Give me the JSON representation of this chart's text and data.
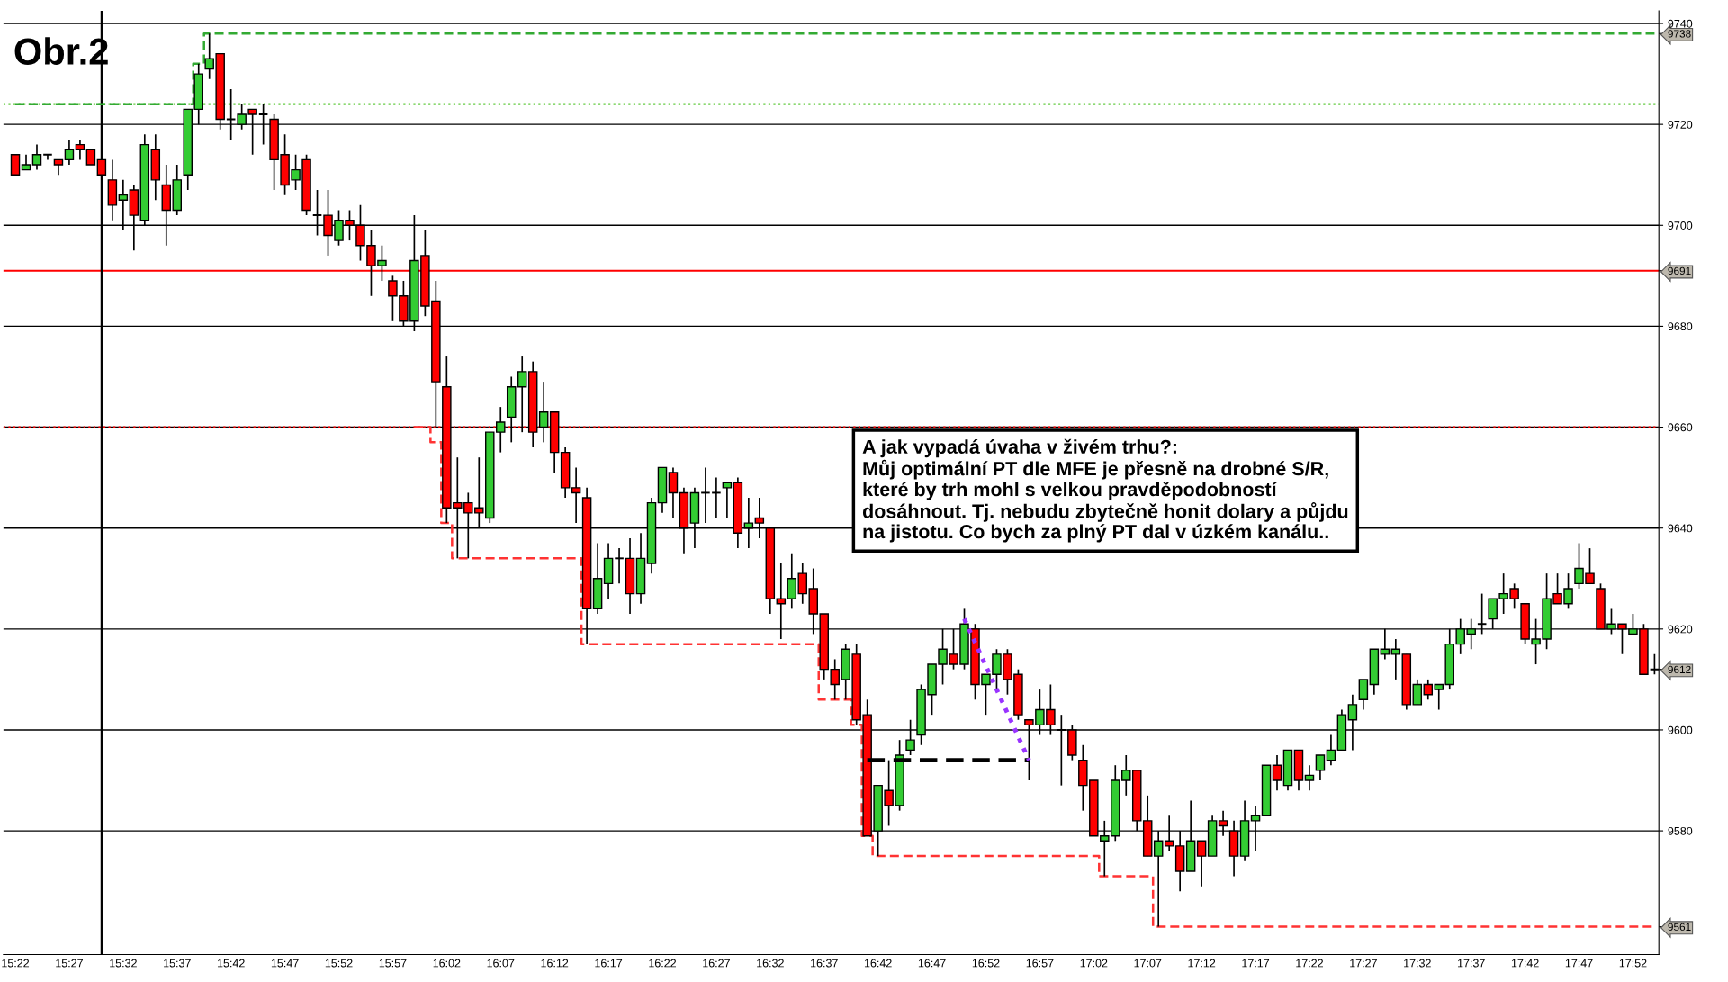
{
  "chart_data": {
    "type": "candlestick",
    "title": "Obr.2",
    "categories": [
      "15:22",
      null,
      null,
      null,
      null,
      "15:27",
      null,
      null,
      null,
      null,
      "15:32",
      null,
      null,
      null,
      null,
      "15:37",
      null,
      null,
      null,
      null,
      "15:42",
      null,
      null,
      null,
      null,
      "15:47",
      null,
      null,
      null,
      null,
      "15:52",
      null,
      null,
      null,
      null,
      "15:57",
      null,
      null,
      null,
      null,
      "16:02",
      null,
      null,
      null,
      null,
      "16:07",
      null,
      null,
      null,
      null,
      "16:12",
      null,
      null,
      null,
      null,
      "16:17",
      null,
      null,
      null,
      null,
      "16:22",
      null,
      null,
      null,
      null,
      "16:27",
      null,
      null,
      null,
      null,
      "16:32",
      null,
      null,
      null,
      null,
      "16:37",
      null,
      null,
      null,
      null,
      "16:42",
      null,
      null,
      null,
      null,
      "16:47",
      null,
      null,
      null,
      null,
      "16:52",
      null,
      null,
      null,
      null,
      "16:57",
      null,
      null,
      null,
      null,
      "17:02",
      null,
      null,
      null,
      null,
      "17:07",
      null,
      null,
      null,
      null,
      "17:12",
      null,
      null,
      null,
      null,
      "17:17",
      null,
      null,
      null,
      null,
      "17:22",
      null,
      null,
      null,
      null,
      "17:27",
      null,
      null,
      null,
      null,
      "17:32",
      null,
      null,
      null,
      null,
      "17:37",
      null,
      null,
      null,
      null,
      "17:42",
      null,
      null,
      null,
      null,
      "17:47",
      null,
      null,
      null,
      null,
      "17:52",
      null,
      null
    ],
    "colors": [
      "#ff0000",
      "#33cc33",
      "#33cc33",
      "#000000",
      "#ff0000",
      "#33cc33",
      "#ff0000",
      "#ff0000",
      "#ff0000",
      "#ff0000",
      "#33cc33",
      "#ff0000",
      "#33cc33",
      "#ff0000",
      "#ff0000",
      "#33cc33",
      "#33cc33",
      "#33cc33",
      "#33cc33",
      "#ff0000",
      "#000000",
      "#33cc33",
      "#ff0000",
      "#000000",
      "#ff0000",
      "#ff0000",
      "#33cc33",
      "#ff0000",
      "#000000",
      "#ff0000",
      "#33cc33",
      "#ff0000",
      "#ff0000",
      "#ff0000",
      "#33cc33",
      "#ff0000",
      "#ff0000",
      "#33cc33",
      "#ff0000",
      "#ff0000",
      "#ff0000",
      "#ff0000",
      "#ff0000",
      "#ff0000",
      "#33cc33",
      "#33cc33",
      "#33cc33",
      "#33cc33",
      "#ff0000",
      "#33cc33",
      "#ff0000",
      "#ff0000",
      "#ff0000",
      "#ff0000",
      "#33cc33",
      "#33cc33",
      "#000000",
      "#ff0000",
      "#33cc33",
      "#33cc33",
      "#33cc33",
      "#ff0000",
      "#ff0000",
      "#33cc33",
      "#000000",
      "#000000",
      "#33cc33",
      "#ff0000",
      "#33cc33",
      "#ff0000",
      "#ff0000",
      "#ff0000",
      "#33cc33",
      "#ff0000",
      "#ff0000",
      "#ff0000",
      "#ff0000",
      "#33cc33",
      "#ff0000",
      "#ff0000",
      "#33cc33",
      "#ff0000",
      "#33cc33",
      "#33cc33",
      "#33cc33",
      "#33cc33",
      "#33cc33",
      "#ff0000",
      "#33cc33",
      "#ff0000",
      "#33cc33",
      "#33cc33",
      "#ff0000",
      "#ff0000",
      "#ff0000",
      "#33cc33",
      "#ff0000",
      "#000000",
      "#ff0000",
      "#ff0000",
      "#ff0000",
      "#33cc33",
      "#33cc33",
      "#33cc33",
      "#ff0000",
      "#ff0000",
      "#33cc33",
      "#ff0000",
      "#ff0000",
      "#33cc33",
      "#ff0000",
      "#33cc33",
      "#ff0000",
      "#ff0000",
      "#33cc33",
      "#33cc33",
      "#33cc33",
      "#ff0000",
      "#33cc33",
      "#ff0000",
      "#33cc33",
      "#33cc33",
      "#33cc33",
      "#33cc33",
      "#33cc33",
      "#33cc33",
      "#33cc33",
      "#33cc33",
      "#33cc33",
      "#ff0000",
      "#33cc33",
      "#ff0000",
      "#33cc33",
      "#33cc33",
      "#33cc33",
      "#33cc33",
      "#000000",
      "#33cc33",
      "#33cc33",
      "#ff0000",
      "#ff0000",
      "#33cc33",
      "#33cc33",
      "#ff0000",
      "#33cc33",
      "#33cc33",
      "#ff0000",
      "#ff0000",
      "#33cc33",
      "#ff0000",
      "#33cc33",
      "#ff0000",
      "#000000"
    ],
    "ohlc": [
      [
        9714,
        9714,
        9710,
        9710
      ],
      [
        9711,
        9714,
        9711,
        9712
      ],
      [
        9712,
        9716,
        9711,
        9714
      ],
      [
        9714,
        9714,
        9713,
        9714
      ],
      [
        9713,
        9713,
        9710,
        9712
      ],
      [
        9713,
        9717,
        9712,
        9715
      ],
      [
        9716,
        9717,
        9713,
        9715
      ],
      [
        9715,
        9715,
        9712,
        9712
      ],
      [
        9713,
        9713,
        9710,
        9710
      ],
      [
        9709,
        9713,
        9701,
        9704
      ],
      [
        9705,
        9709,
        9699,
        9706
      ],
      [
        9707,
        9708,
        9695,
        9702
      ],
      [
        9701,
        9718,
        9700,
        9716
      ],
      [
        9715,
        9718,
        9705,
        9709
      ],
      [
        9708,
        9712,
        9696,
        9703
      ],
      [
        9703,
        9712,
        9702,
        9709
      ],
      [
        9710,
        9723,
        9707,
        9723
      ],
      [
        9723,
        9732,
        9720,
        9730
      ],
      [
        9731,
        9738,
        9729,
        9733
      ],
      [
        9734,
        9734,
        9719,
        9721
      ],
      [
        9721,
        9727,
        9717,
        9721
      ],
      [
        9720,
        9724,
        9719,
        9722
      ],
      [
        9723,
        9723,
        9714,
        9722
      ],
      [
        9722,
        9724,
        9716,
        9722
      ],
      [
        9721,
        9722,
        9707,
        9713
      ],
      [
        9714,
        9718,
        9706,
        9708
      ],
      [
        9709,
        9714,
        9707,
        9711
      ],
      [
        9713,
        9714,
        9702,
        9703
      ],
      [
        9702,
        9707,
        9698,
        9702
      ],
      [
        9702,
        9707,
        9694,
        9698
      ],
      [
        9697,
        9703,
        9696,
        9701
      ],
      [
        9701,
        9703,
        9697,
        9700
      ],
      [
        9700,
        9704,
        9693,
        9696
      ],
      [
        9696,
        9699,
        9686,
        9692
      ],
      [
        9692,
        9696,
        9689,
        9693
      ],
      [
        9689,
        9690,
        9681,
        9686
      ],
      [
        9686,
        9689,
        9680,
        9681
      ],
      [
        9681,
        9702,
        9679,
        9693
      ],
      [
        9694,
        9699,
        9682,
        9684
      ],
      [
        9685,
        9689,
        9660,
        9669
      ],
      [
        9668,
        9674,
        9641,
        9644
      ],
      [
        9645,
        9654,
        9634,
        9644
      ],
      [
        9645,
        9647,
        9634,
        9643
      ],
      [
        9644,
        9654,
        9640,
        9643
      ],
      [
        9642,
        9659,
        9641,
        9659
      ],
      [
        9659,
        9664,
        9655,
        9661
      ],
      [
        9662,
        9670,
        9657,
        9668
      ],
      [
        9668,
        9674,
        9659,
        9671
      ],
      [
        9671,
        9673,
        9656,
        9659
      ],
      [
        9660,
        9669,
        9657,
        9663
      ],
      [
        9663,
        9663,
        9651,
        9655
      ],
      [
        9655,
        9656,
        9646,
        9648
      ],
      [
        9648,
        9652,
        9641,
        9647
      ],
      [
        9646,
        9648,
        9617,
        9624
      ],
      [
        9624,
        9637,
        9623,
        9630
      ],
      [
        9629,
        9637,
        9626,
        9634
      ],
      [
        9634,
        9636,
        9629,
        9634
      ],
      [
        9634,
        9638,
        9623,
        9627
      ],
      [
        9627,
        9639,
        9625,
        9634
      ],
      [
        9633,
        9646,
        9631,
        9645
      ],
      [
        9645,
        9652,
        9643,
        9652
      ],
      [
        9651,
        9652,
        9642,
        9647
      ],
      [
        9647,
        9648,
        9635,
        9640
      ],
      [
        9641,
        9648,
        9636,
        9647
      ],
      [
        9647,
        9652,
        9641,
        9647
      ],
      [
        9647,
        9650,
        9642,
        9647
      ],
      [
        9648,
        9649,
        9642,
        9649
      ],
      [
        9649,
        9650,
        9636,
        9639
      ],
      [
        9640,
        9646,
        9636,
        9641
      ],
      [
        9642,
        9646,
        9638,
        9641
      ],
      [
        9640,
        9640,
        9623,
        9626
      ],
      [
        9626,
        9633,
        9618,
        9625
      ],
      [
        9626,
        9635,
        9624,
        9630
      ],
      [
        9631,
        9633,
        9625,
        9627
      ],
      [
        9628,
        9632,
        9619,
        9623
      ],
      [
        9623,
        9623,
        9610,
        9612
      ],
      [
        9612,
        9614,
        9606,
        9609
      ],
      [
        9610,
        9617,
        9606,
        9616
      ],
      [
        9615,
        9617,
        9601,
        9602
      ],
      [
        9603,
        9606,
        9579,
        9579
      ],
      [
        9580,
        9589,
        9575,
        9589
      ],
      [
        9588,
        9594,
        9581,
        9585
      ],
      [
        9585,
        9598,
        9584,
        9595
      ],
      [
        9596,
        9602,
        9595,
        9598
      ],
      [
        9599,
        9609,
        9597,
        9608
      ],
      [
        9607,
        9613,
        9603,
        9613
      ],
      [
        9613,
        9620,
        9609,
        9616
      ],
      [
        9615,
        9620,
        9612,
        9613
      ],
      [
        9613,
        9624,
        9612,
        9621
      ],
      [
        9620,
        9621,
        9606,
        9609
      ],
      [
        9609,
        9611,
        9603,
        9611
      ],
      [
        9611,
        9616,
        9608,
        9615
      ],
      [
        9615,
        9616,
        9607,
        9610
      ],
      [
        9611,
        9612,
        9602,
        9603
      ],
      [
        9602,
        9602,
        9590,
        9601
      ],
      [
        9601,
        9608,
        9599,
        9604
      ],
      [
        9604,
        9609,
        9599,
        9601
      ],
      [
        9600,
        9603,
        9589,
        9600
      ],
      [
        9600,
        9601,
        9594,
        9595
      ],
      [
        9594,
        9597,
        9584,
        9589
      ],
      [
        9590,
        9590,
        9579,
        9579
      ],
      [
        9578,
        9582,
        9571,
        9579
      ],
      [
        9579,
        9593,
        9578,
        9590
      ],
      [
        9590,
        9595,
        9587,
        9592
      ],
      [
        9592,
        9592,
        9580,
        9582
      ],
      [
        9582,
        9587,
        9575,
        9575
      ],
      [
        9575,
        9580,
        9561,
        9578
      ],
      [
        9578,
        9583,
        9576,
        9577
      ],
      [
        9577,
        9580,
        9568,
        9572
      ],
      [
        9572,
        9586,
        9572,
        9578
      ],
      [
        9578,
        9578,
        9569,
        9575
      ],
      [
        9575,
        9583,
        9575,
        9582
      ],
      [
        9582,
        9584,
        9579,
        9581
      ],
      [
        9580,
        9582,
        9571,
        9575
      ],
      [
        9575,
        9586,
        9574,
        9582
      ],
      [
        9582,
        9585,
        9576,
        9583
      ],
      [
        9583,
        9593,
        9583,
        9593
      ],
      [
        9593,
        9595,
        9588,
        9590
      ],
      [
        9589,
        9596,
        9588,
        9596
      ],
      [
        9596,
        9596,
        9588,
        9590
      ],
      [
        9590,
        9593,
        9588,
        9591
      ],
      [
        9592,
        9595,
        9590,
        9595
      ],
      [
        9594,
        9599,
        9593,
        9596
      ],
      [
        9596,
        9604,
        9596,
        9603
      ],
      [
        9602,
        9607,
        9596,
        9605
      ],
      [
        9606,
        9610,
        9604,
        9610
      ],
      [
        9609,
        9616,
        9607,
        9616
      ],
      [
        9615,
        9620,
        9614,
        9616
      ],
      [
        9615,
        9618,
        9610,
        9616
      ],
      [
        9615,
        9615,
        9604,
        9605
      ],
      [
        9605,
        9610,
        9605,
        9609
      ],
      [
        9609,
        9610,
        9606,
        9607
      ],
      [
        9608,
        9609,
        9604,
        9609
      ],
      [
        9609,
        9620,
        9608,
        9617
      ],
      [
        9617,
        9622,
        9615,
        9620
      ],
      [
        9619,
        9622,
        9616,
        9620
      ],
      [
        9621,
        9627,
        9619,
        9621
      ],
      [
        9622,
        9626,
        9620,
        9626
      ],
      [
        9626,
        9631,
        9623,
        9627
      ],
      [
        9628,
        9629,
        9624,
        9626
      ],
      [
        9625,
        9625,
        9617,
        9618
      ],
      [
        9617,
        9622,
        9613,
        9618
      ],
      [
        9618,
        9631,
        9616,
        9626
      ],
      [
        9627,
        9631,
        9625,
        9625
      ],
      [
        9625,
        9631,
        9624,
        9628
      ],
      [
        9629,
        9637,
        9628,
        9632
      ],
      [
        9631,
        9636,
        9629,
        9629
      ],
      [
        9628,
        9629,
        9620,
        9620
      ],
      [
        9620,
        9624,
        9619,
        9621
      ],
      [
        9621,
        9621,
        9615,
        9620
      ],
      [
        9619,
        9623,
        9619,
        9620
      ],
      [
        9620,
        9621,
        9611,
        9611
      ],
      [
        9612,
        9615,
        9611,
        9612
      ]
    ],
    "series": [
      {
        "type": "step",
        "color": "#ff3333",
        "line_style": "dashed",
        "values": [
          null,
          null,
          null,
          null,
          null,
          null,
          null,
          null,
          null,
          null,
          null,
          null,
          null,
          null,
          null,
          null,
          null,
          null,
          null,
          null,
          null,
          null,
          null,
          null,
          null,
          null,
          null,
          null,
          null,
          null,
          null,
          null,
          null,
          null,
          null,
          null,
          null,
          9660,
          9660,
          9657,
          9641,
          9634,
          9634,
          9634,
          9634,
          9634,
          9634,
          9634,
          9634,
          9634,
          9634,
          9634,
          9634,
          9617,
          9617,
          9617,
          9617,
          9617,
          9617,
          9617,
          9617,
          9617,
          9617,
          9617,
          9617,
          9617,
          9617,
          9617,
          9617,
          9617,
          9617,
          9617,
          9617,
          9617,
          9617,
          9606,
          9606,
          9606,
          9601,
          9579,
          9575,
          9575,
          9575,
          9575,
          9575,
          9575,
          9575,
          9575,
          9575,
          9575,
          9575,
          9575,
          9575,
          9575,
          9575,
          9575,
          9575,
          9575,
          9575,
          9575,
          9575,
          9571,
          9571,
          9571,
          9571,
          9571,
          9561,
          9561,
          9561,
          9561,
          9561,
          9561,
          9561,
          9561,
          9561,
          9561,
          9561,
          9561,
          9561,
          9561,
          9561,
          9561,
          9561,
          9561,
          9561,
          9561,
          9561,
          9561,
          9561,
          9561,
          9561,
          9561,
          9561,
          9561,
          9561,
          9561,
          9561,
          9561,
          9561,
          9561,
          9561,
          9561,
          9561,
          9561,
          9561,
          9561,
          9561,
          9561,
          9561,
          9561,
          9561,
          9561,
          9561
        ]
      },
      {
        "type": "step",
        "color": "#33aa33",
        "line_style": "dashed",
        "values": [
          9724,
          9724,
          9724,
          9724,
          9724,
          9724,
          9724,
          9724,
          9724,
          9724,
          9724,
          9724,
          9724,
          9724,
          9724,
          9724,
          9724,
          9732,
          9738,
          9738,
          9738,
          9738,
          9738,
          9738,
          9738,
          9738,
          9738,
          9738,
          9738,
          9738,
          9738,
          9738,
          9738,
          9738,
          9738,
          9738,
          9738,
          9738,
          9738,
          9738,
          9738,
          9738,
          9738,
          9738,
          9738,
          9738,
          9738,
          9738,
          9738,
          9738,
          9738,
          9738,
          9738,
          9738,
          9738,
          9738,
          9738,
          9738,
          9738,
          9738,
          9738,
          9738,
          9738,
          9738,
          9738,
          9738,
          9738,
          9738,
          9738,
          9738,
          9738,
          9738,
          9738,
          9738,
          9738,
          9738,
          9738,
          9738,
          9738,
          9738,
          9738,
          9738,
          9738,
          9738,
          9738,
          9738,
          9738,
          9738,
          9738,
          9738,
          9738,
          9738,
          9738,
          9738,
          9738,
          9738,
          9738,
          9738,
          9738,
          9738,
          9738,
          9738,
          9738,
          9738,
          9738,
          9738,
          9738,
          9738,
          9738,
          9738,
          9738,
          9738,
          9738,
          9738,
          9738,
          9738,
          9738,
          9738,
          9738,
          9738,
          9738,
          9738,
          9738,
          9738,
          9738,
          9738,
          9738,
          9738,
          9738,
          9738,
          9738,
          9738,
          9738,
          9738,
          9738,
          9738,
          9738,
          9738,
          9738,
          9738,
          9738,
          9738,
          9738,
          9738,
          9738,
          9738,
          9738,
          9738,
          9738,
          9738,
          9738,
          9738,
          9738
        ]
      },
      {
        "type": "line",
        "color": "#000000",
        "line_style": "dashed",
        "values": [
          null,
          null,
          null,
          null,
          null,
          null,
          null,
          null,
          null,
          null,
          null,
          null,
          null,
          null,
          null,
          null,
          null,
          null,
          null,
          null,
          null,
          null,
          null,
          null,
          null,
          null,
          null,
          null,
          null,
          null,
          null,
          null,
          null,
          null,
          null,
          null,
          null,
          null,
          null,
          null,
          null,
          null,
          null,
          null,
          null,
          null,
          null,
          null,
          null,
          null,
          null,
          null,
          null,
          null,
          null,
          null,
          null,
          null,
          null,
          null,
          null,
          null,
          null,
          null,
          null,
          null,
          null,
          null,
          null,
          null,
          null,
          null,
          null,
          null,
          null,
          null,
          null,
          null,
          null,
          9594,
          null,
          null,
          null,
          null,
          null,
          null,
          null,
          null,
          null,
          null,
          null,
          null,
          null,
          null,
          9594,
          null,
          null,
          null,
          null,
          null,
          null,
          null,
          null,
          null,
          null,
          null,
          null,
          null,
          null,
          null,
          null,
          null,
          null,
          null,
          null,
          null,
          null,
          null,
          null,
          null,
          null,
          null,
          null,
          null,
          null,
          null,
          null,
          null,
          null,
          null,
          null,
          null,
          null,
          null,
          null,
          null,
          null,
          null,
          null,
          null,
          null,
          null,
          null,
          null,
          null,
          null,
          null,
          null,
          null,
          null,
          null,
          null,
          null
        ]
      },
      {
        "type": "line",
        "color": "#9933ff",
        "line_style": "dotted",
        "values": [
          null,
          null,
          null,
          null,
          null,
          null,
          null,
          null,
          null,
          null,
          null,
          null,
          null,
          null,
          null,
          null,
          null,
          null,
          null,
          null,
          null,
          null,
          null,
          null,
          null,
          null,
          null,
          null,
          null,
          null,
          null,
          null,
          null,
          null,
          null,
          null,
          null,
          null,
          null,
          null,
          null,
          null,
          null,
          null,
          null,
          null,
          null,
          null,
          null,
          null,
          null,
          null,
          null,
          null,
          null,
          null,
          null,
          null,
          null,
          null,
          null,
          null,
          null,
          null,
          null,
          null,
          null,
          null,
          null,
          null,
          null,
          null,
          null,
          null,
          null,
          null,
          null,
          null,
          null,
          null,
          null,
          null,
          null,
          null,
          null,
          null,
          null,
          null,
          9622,
          null,
          null,
          null,
          null,
          null,
          9594,
          null,
          null,
          null,
          null,
          null,
          null,
          null,
          null,
          null,
          null,
          null,
          null,
          null,
          null,
          null,
          null,
          null,
          null,
          null,
          null,
          null,
          null,
          null,
          null,
          null,
          null,
          null,
          null,
          null,
          null,
          null,
          null,
          null,
          null,
          null,
          null,
          null,
          null,
          null,
          null,
          null,
          null,
          null,
          null,
          null,
          null,
          null,
          null,
          null,
          null,
          null,
          null,
          null,
          null,
          null,
          null,
          null,
          null
        ]
      }
    ],
    "ylim": [
      9555.5,
      9742.5
    ],
    "yticks": [
      {
        "value": 9561,
        "label": "9561"
      },
      9580,
      9600,
      {
        "value": 9612,
        "label": "9612"
      },
      9620,
      9640,
      9660,
      9680,
      {
        "value": 9691,
        "label": "9691"
      },
      9700,
      9720,
      {
        "value": 9738,
        "label": "9738"
      },
      9740
    ],
    "grid": "y",
    "ref_lines": [
      {
        "axis": "y",
        "value": 9691,
        "color": "#ff0000",
        "line_style": "solid"
      },
      {
        "axis": "y",
        "value": 9660,
        "color": "#ff0000",
        "line_style": "dotted"
      },
      {
        "axis": "y",
        "value": 9724,
        "color": "#66cc44",
        "line_style": "dotted"
      }
    ],
    "annotations": [
      "A jak vypadá úvaha v živém trhu?:\nMůj optimální PT dle MFE je přesně na drobné S/R,\nkteré by trh mohl s velkou pravděpodobností\ndosáhnout. Tj. nebudu zbytečně honit dolary a půjdu\nna jistotu. Co bych za plný PT dal v úzkém kanálu.."
    ]
  }
}
